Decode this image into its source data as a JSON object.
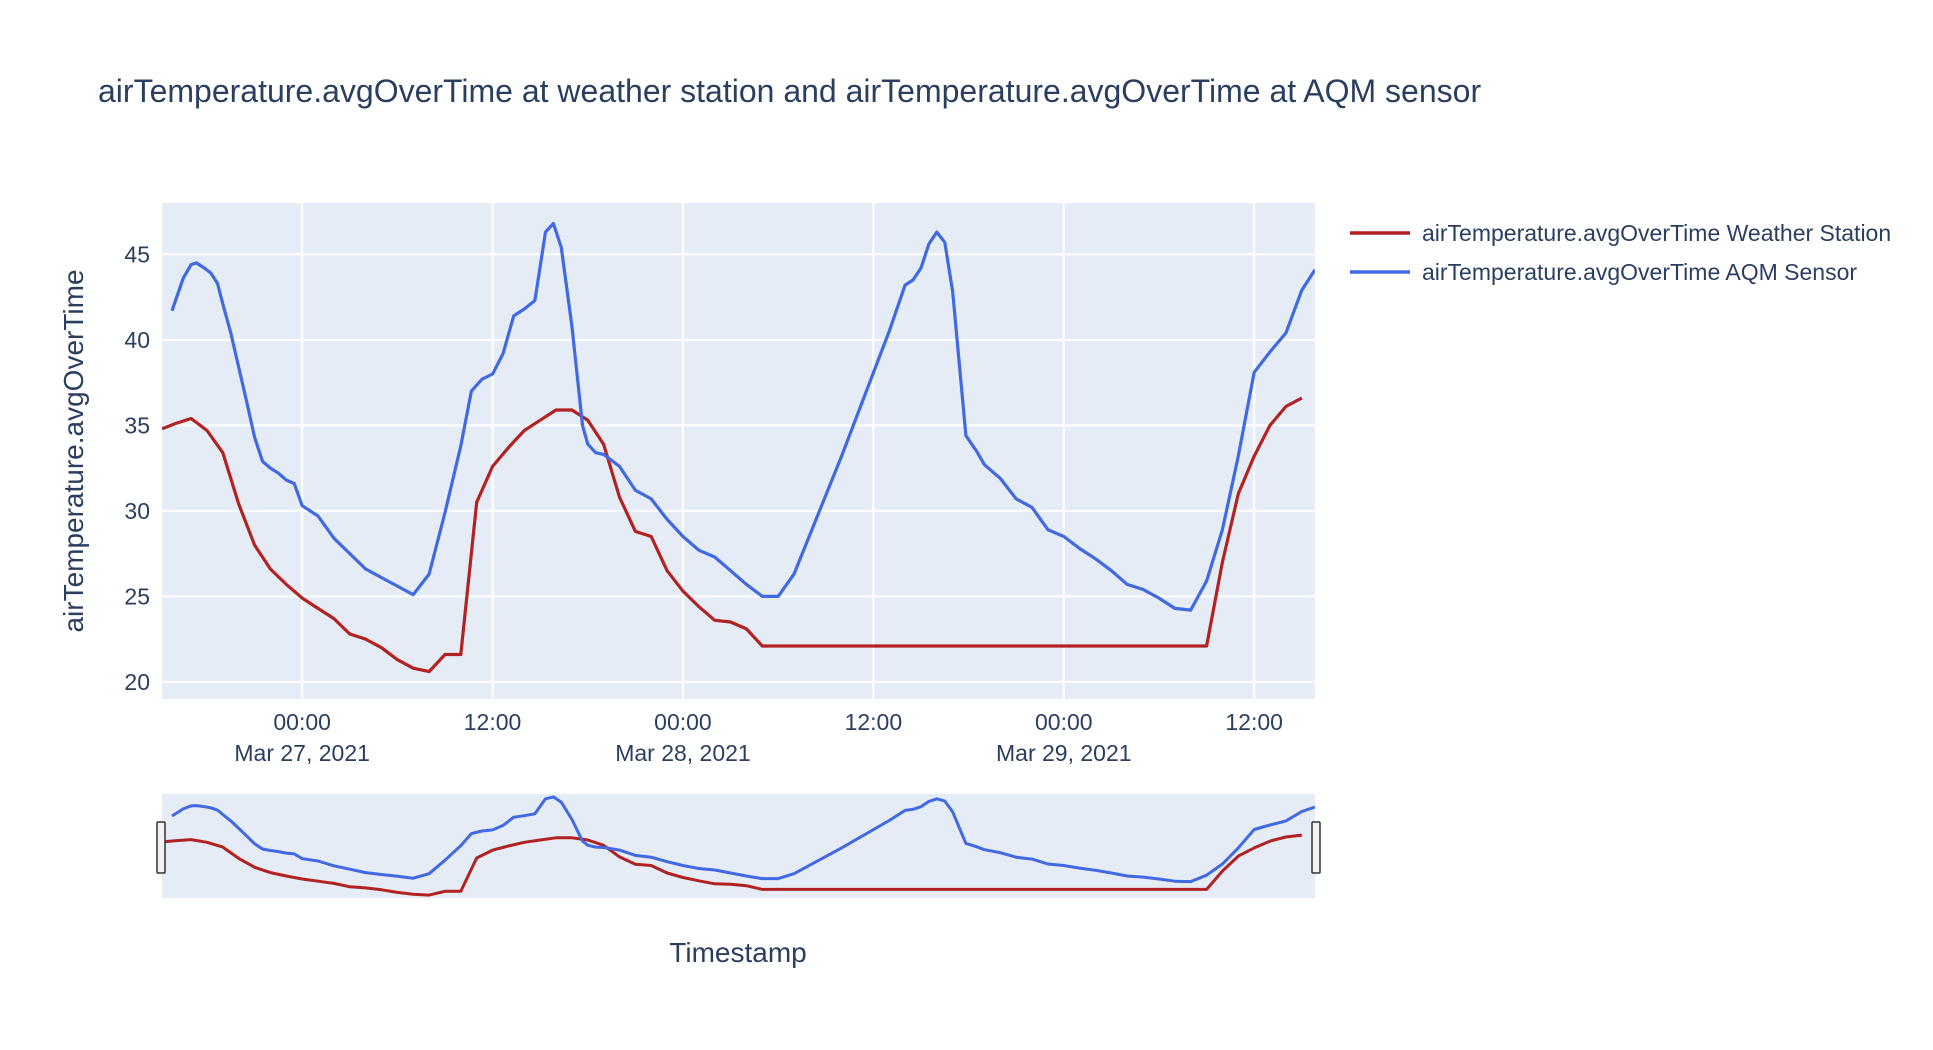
{
  "chart_data": {
    "type": "line",
    "title": "airTemperature.avgOverTime at weather station and airTemperature.avgOverTime at AQM sensor",
    "xlabel": "Timestamp",
    "ylabel": "airTemperature.avgOverTime",
    "x_range": [
      "2021-03-26 15:10",
      "2021-03-29 15:50"
    ],
    "y_range": [
      19.0,
      48.0
    ],
    "y_ticks": [
      20,
      25,
      30,
      35,
      40,
      45
    ],
    "x_ticks": [
      {
        "t": "2021-03-27 00:00",
        "label": "00:00",
        "date_label": "Mar 27, 2021"
      },
      {
        "t": "2021-03-27 12:00",
        "label": "12:00",
        "date_label": ""
      },
      {
        "t": "2021-03-28 00:00",
        "label": "00:00",
        "date_label": "Mar 28, 2021"
      },
      {
        "t": "2021-03-28 12:00",
        "label": "12:00",
        "date_label": ""
      },
      {
        "t": "2021-03-29 00:00",
        "label": "00:00",
        "date_label": "Mar 29, 2021"
      },
      {
        "t": "2021-03-29 12:00",
        "label": "12:00",
        "date_label": ""
      }
    ],
    "grid": true,
    "legend_position": "top-right",
    "rangeslider": true,
    "series": [
      {
        "name": "airTemperature.avgOverTime Weather Station",
        "color": "#b22222",
        "points": [
          [
            "2021-03-26 15:10",
            34.8
          ],
          [
            "2021-03-26 16:00",
            35.1
          ],
          [
            "2021-03-26 17:00",
            35.4
          ],
          [
            "2021-03-26 18:00",
            34.7
          ],
          [
            "2021-03-26 19:00",
            33.4
          ],
          [
            "2021-03-26 20:00",
            30.4
          ],
          [
            "2021-03-26 21:00",
            28.0
          ],
          [
            "2021-03-26 22:00",
            26.6
          ],
          [
            "2021-03-26 23:00",
            25.7
          ],
          [
            "2021-03-27 00:00",
            24.9
          ],
          [
            "2021-03-27 01:00",
            24.3
          ],
          [
            "2021-03-27 02:00",
            23.7
          ],
          [
            "2021-03-27 03:00",
            22.8
          ],
          [
            "2021-03-27 04:00",
            22.5
          ],
          [
            "2021-03-27 05:00",
            22.0
          ],
          [
            "2021-03-27 06:00",
            21.3
          ],
          [
            "2021-03-27 07:00",
            20.8
          ],
          [
            "2021-03-27 08:00",
            20.6
          ],
          [
            "2021-03-27 09:00",
            21.6
          ],
          [
            "2021-03-27 10:00",
            21.6
          ],
          [
            "2021-03-27 11:00",
            30.5
          ],
          [
            "2021-03-27 12:00",
            32.6
          ],
          [
            "2021-03-27 13:00",
            33.7
          ],
          [
            "2021-03-27 14:00",
            34.7
          ],
          [
            "2021-03-27 15:00",
            35.3
          ],
          [
            "2021-03-27 16:00",
            35.9
          ],
          [
            "2021-03-27 17:00",
            35.9
          ],
          [
            "2021-03-27 18:00",
            35.3
          ],
          [
            "2021-03-27 19:00",
            33.9
          ],
          [
            "2021-03-27 20:00",
            30.8
          ],
          [
            "2021-03-27 21:00",
            28.8
          ],
          [
            "2021-03-27 22:00",
            28.5
          ],
          [
            "2021-03-27 23:00",
            26.5
          ],
          [
            "2021-03-28 00:00",
            25.3
          ],
          [
            "2021-03-28 01:00",
            24.4
          ],
          [
            "2021-03-28 02:00",
            23.6
          ],
          [
            "2021-03-28 03:00",
            23.5
          ],
          [
            "2021-03-28 04:00",
            23.1
          ],
          [
            "2021-03-28 05:00",
            22.1
          ],
          [
            "2021-03-28 06:00",
            22.1
          ],
          [
            "2021-03-28 12:00",
            22.1
          ],
          [
            "2021-03-28 18:00",
            22.1
          ],
          [
            "2021-03-29 00:00",
            22.1
          ],
          [
            "2021-03-29 06:00",
            22.1
          ],
          [
            "2021-03-29 09:00",
            22.1
          ],
          [
            "2021-03-29 10:00",
            27.0
          ],
          [
            "2021-03-29 11:00",
            31.0
          ],
          [
            "2021-03-29 12:00",
            33.2
          ],
          [
            "2021-03-29 13:00",
            35.0
          ],
          [
            "2021-03-29 14:00",
            36.1
          ],
          [
            "2021-03-29 15:00",
            36.6
          ]
        ]
      },
      {
        "name": "airTemperature.avgOverTime AQM Sensor",
        "color": "#4169e1",
        "points": [
          [
            "2021-03-26 15:48",
            41.7
          ],
          [
            "2021-03-26 16:30",
            43.6
          ],
          [
            "2021-03-26 17:00",
            44.4
          ],
          [
            "2021-03-26 17:20",
            44.5
          ],
          [
            "2021-03-26 17:50",
            44.2
          ],
          [
            "2021-03-26 18:15",
            43.9
          ],
          [
            "2021-03-26 18:40",
            43.3
          ],
          [
            "2021-03-26 19:00",
            42.1
          ],
          [
            "2021-03-26 19:30",
            40.4
          ],
          [
            "2021-03-26 20:00",
            38.4
          ],
          [
            "2021-03-26 20:30",
            36.4
          ],
          [
            "2021-03-26 21:00",
            34.3
          ],
          [
            "2021-03-26 21:30",
            32.9
          ],
          [
            "2021-03-26 22:00",
            32.5
          ],
          [
            "2021-03-26 22:30",
            32.2
          ],
          [
            "2021-03-26 23:00",
            31.8
          ],
          [
            "2021-03-26 23:30",
            31.6
          ],
          [
            "2021-03-27 00:00",
            30.3
          ],
          [
            "2021-03-27 01:00",
            29.7
          ],
          [
            "2021-03-27 02:00",
            28.4
          ],
          [
            "2021-03-27 03:00",
            27.5
          ],
          [
            "2021-03-27 04:00",
            26.6
          ],
          [
            "2021-03-27 05:00",
            26.1
          ],
          [
            "2021-03-27 06:00",
            25.6
          ],
          [
            "2021-03-27 07:00",
            25.1
          ],
          [
            "2021-03-27 08:00",
            26.3
          ],
          [
            "2021-03-27 09:00",
            29.9
          ],
          [
            "2021-03-27 10:00",
            33.8
          ],
          [
            "2021-03-27 10:40",
            37.0
          ],
          [
            "2021-03-27 11:20",
            37.7
          ],
          [
            "2021-03-27 12:00",
            38.0
          ],
          [
            "2021-03-27 12:40",
            39.2
          ],
          [
            "2021-03-27 13:20",
            41.4
          ],
          [
            "2021-03-27 14:00",
            41.8
          ],
          [
            "2021-03-27 14:40",
            42.3
          ],
          [
            "2021-03-27 15:20",
            46.3
          ],
          [
            "2021-03-27 15:50",
            46.8
          ],
          [
            "2021-03-27 16:20",
            45.4
          ],
          [
            "2021-03-27 17:00",
            40.8
          ],
          [
            "2021-03-27 17:40",
            35.0
          ],
          [
            "2021-03-27 18:00",
            33.9
          ],
          [
            "2021-03-27 18:30",
            33.4
          ],
          [
            "2021-03-27 19:00",
            33.3
          ],
          [
            "2021-03-27 20:00",
            32.6
          ],
          [
            "2021-03-27 21:00",
            31.2
          ],
          [
            "2021-03-27 22:00",
            30.7
          ],
          [
            "2021-03-27 23:00",
            29.5
          ],
          [
            "2021-03-28 00:00",
            28.5
          ],
          [
            "2021-03-28 01:00",
            27.7
          ],
          [
            "2021-03-28 02:00",
            27.3
          ],
          [
            "2021-03-28 03:00",
            26.5
          ],
          [
            "2021-03-28 04:00",
            25.7
          ],
          [
            "2021-03-28 05:00",
            25.0
          ],
          [
            "2021-03-28 06:00",
            25.0
          ],
          [
            "2021-03-28 07:00",
            26.3
          ],
          [
            "2021-03-28 10:00",
            33.2
          ],
          [
            "2021-03-28 13:00",
            40.5
          ],
          [
            "2021-03-28 14:00",
            43.2
          ],
          [
            "2021-03-28 14:30",
            43.5
          ],
          [
            "2021-03-28 15:00",
            44.2
          ],
          [
            "2021-03-28 15:30",
            45.6
          ],
          [
            "2021-03-28 16:00",
            46.3
          ],
          [
            "2021-03-28 16:30",
            45.7
          ],
          [
            "2021-03-28 17:00",
            42.8
          ],
          [
            "2021-03-28 17:50",
            34.4
          ],
          [
            "2021-03-28 18:30",
            33.5
          ],
          [
            "2021-03-28 19:00",
            32.7
          ],
          [
            "2021-03-28 20:00",
            31.9
          ],
          [
            "2021-03-28 21:00",
            30.7
          ],
          [
            "2021-03-28 22:00",
            30.2
          ],
          [
            "2021-03-28 23:00",
            28.9
          ],
          [
            "2021-03-29 00:00",
            28.5
          ],
          [
            "2021-03-29 01:00",
            27.8
          ],
          [
            "2021-03-29 02:00",
            27.2
          ],
          [
            "2021-03-29 03:00",
            26.5
          ],
          [
            "2021-03-29 04:00",
            25.7
          ],
          [
            "2021-03-29 05:00",
            25.4
          ],
          [
            "2021-03-29 06:00",
            24.9
          ],
          [
            "2021-03-29 07:00",
            24.3
          ],
          [
            "2021-03-29 08:00",
            24.2
          ],
          [
            "2021-03-29 09:00",
            25.9
          ],
          [
            "2021-03-29 10:00",
            28.9
          ],
          [
            "2021-03-29 11:00",
            33.2
          ],
          [
            "2021-03-29 12:00",
            38.1
          ],
          [
            "2021-03-29 13:00",
            39.3
          ],
          [
            "2021-03-29 14:00",
            40.4
          ],
          [
            "2021-03-29 15:00",
            42.9
          ],
          [
            "2021-03-29 15:50",
            44.1
          ]
        ]
      }
    ]
  }
}
